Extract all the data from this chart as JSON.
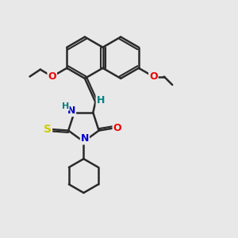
{
  "background_color": "#e8e8e8",
  "bond_color": "#2a2a2a",
  "bond_width": 1.8,
  "atom_colors": {
    "N": "#0000cc",
    "O": "#ee0000",
    "S": "#cccc00",
    "H_label": "#008080",
    "C": "#2a2a2a"
  },
  "fig_bg": "#e8e8e8"
}
